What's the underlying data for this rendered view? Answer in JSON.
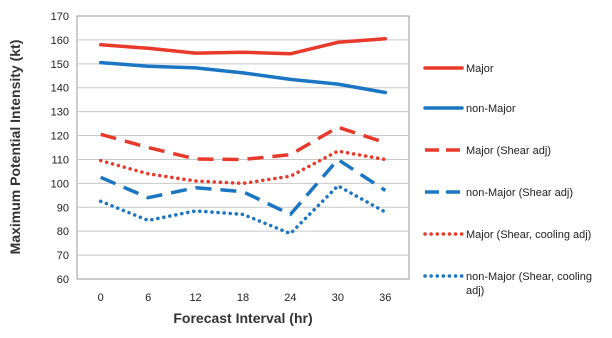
{
  "chart_data": {
    "type": "line",
    "title": "",
    "xlabel": "Forecast Interval (hr)",
    "ylabel": "Maximum Potential Intensity (kt)",
    "x": [
      0,
      6,
      12,
      18,
      24,
      30,
      36
    ],
    "ylim": [
      60,
      170
    ],
    "yticks": [
      60,
      70,
      80,
      90,
      100,
      110,
      120,
      130,
      140,
      150,
      160,
      170
    ],
    "grid": "horizontal",
    "legend_position": "right",
    "series": [
      {
        "name": "Major",
        "values": [
          158,
          156.5,
          154.5,
          154.8,
          154.2,
          159,
          160.5
        ],
        "color": "#e8392a",
        "style": "solid"
      },
      {
        "name": "non-Major",
        "values": [
          150.5,
          149,
          148.3,
          146.2,
          143.5,
          141.5,
          138
        ],
        "color": "#1a76c2",
        "style": "solid"
      },
      {
        "name": "Major (Shear adj)",
        "values": [
          120.5,
          115,
          110.2,
          110,
          112,
          123.5,
          117
        ],
        "color": "#e8392a",
        "style": "dashed"
      },
      {
        "name": "non-Major (Shear adj)",
        "values": [
          102.5,
          94,
          98.2,
          96.5,
          87,
          110,
          97
        ],
        "color": "#1a76c2",
        "style": "dashed"
      },
      {
        "name": "Major (Shear, cooling adj)",
        "values": [
          109.5,
          104,
          101,
          100,
          103,
          113.5,
          110
        ],
        "color": "#e8392a",
        "style": "dotted"
      },
      {
        "name": "non-Major (Shear, cooling adj)",
        "values": [
          92.5,
          84.5,
          88.5,
          87,
          79,
          99,
          88
        ],
        "color": "#1a76c2",
        "style": "dotted"
      }
    ]
  }
}
